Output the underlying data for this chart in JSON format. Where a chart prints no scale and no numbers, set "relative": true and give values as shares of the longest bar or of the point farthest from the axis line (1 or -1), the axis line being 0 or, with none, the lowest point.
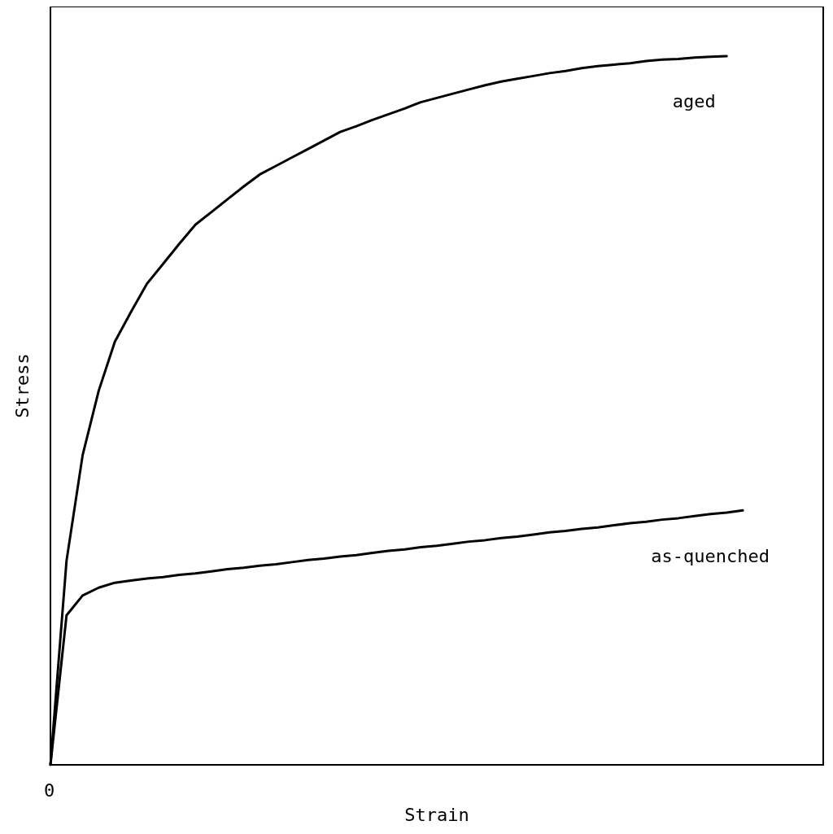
{
  "chart_data": {
    "type": "line",
    "xlabel": "Strain",
    "ylabel": "Stress",
    "relative": true,
    "grid": false,
    "legend": false,
    "marker": "none",
    "line_style": "solid",
    "annotations": [
      "0"
    ],
    "categories": [
      null,
      null,
      null,
      null,
      null,
      null,
      null,
      null,
      null,
      null,
      null,
      null,
      null,
      null,
      null,
      null,
      null,
      null,
      null,
      null,
      null,
      null,
      null,
      null,
      null,
      null,
      null,
      null,
      null,
      null,
      null,
      null,
      null,
      null,
      null,
      null,
      null,
      null,
      null,
      null,
      null,
      null,
      null,
      null,
      null,
      null,
      null,
      null,
      null
    ],
    "series": [
      {
        "name": "aged",
        "color": "#000000",
        "values": [
          0,
          0.288,
          0.437,
          0.528,
          0.597,
          0.639,
          0.679,
          0.707,
          0.735,
          0.762,
          0.78,
          0.798,
          0.816,
          0.833,
          0.845,
          0.857,
          0.869,
          0.881,
          0.893,
          0.901,
          0.91,
          0.918,
          0.926,
          0.935,
          0.941,
          0.947,
          0.953,
          0.959,
          0.964,
          0.968,
          0.972,
          0.976,
          0.979,
          0.983,
          0.986,
          0.988,
          0.99,
          0.993,
          0.995,
          0.996,
          0.998,
          0.999,
          1,
          null,
          null,
          null,
          null,
          null,
          null
        ]
      },
      {
        "name": "as-quenched",
        "color": "#000000",
        "values": [
          0,
          0.211,
          0.239,
          0.25,
          0.257,
          0.26,
          0.263,
          0.265,
          0.268,
          0.27,
          0.273,
          0.276,
          0.278,
          0.281,
          0.283,
          0.286,
          0.289,
          0.291,
          0.294,
          0.296,
          0.299,
          0.302,
          0.304,
          0.307,
          0.309,
          0.312,
          0.315,
          0.317,
          0.32,
          0.322,
          0.325,
          0.328,
          0.33,
          0.333,
          0.335,
          0.338,
          0.341,
          0.343,
          0.346,
          0.348,
          0.351,
          0.354,
          0.356,
          0.359,
          null,
          null,
          null,
          null,
          null
        ]
      }
    ]
  }
}
